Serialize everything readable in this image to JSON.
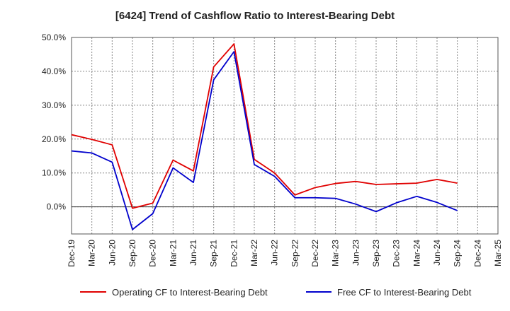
{
  "title": "[6424]  Trend of Cashflow Ratio to Interest-Bearing Debt",
  "chart_data": {
    "type": "line",
    "title": "[6424]  Trend of Cashflow Ratio to Interest-Bearing Debt",
    "xlabel": "",
    "ylabel": "",
    "x_tick_labels": [
      "Dec-19",
      "Mar-20",
      "Jun-20",
      "Sep-20",
      "Dec-20",
      "Mar-21",
      "Jun-21",
      "Sep-21",
      "Dec-21",
      "Mar-22",
      "Jun-22",
      "Sep-22",
      "Dec-22",
      "Mar-23",
      "Jun-23",
      "Sep-23",
      "Dec-23",
      "Mar-24",
      "Jun-24",
      "Sep-24",
      "Dec-24",
      "Mar-25"
    ],
    "y_tick_labels": [
      "50.0%",
      "40.0%",
      "30.0%",
      "20.0%",
      "10.0%",
      "0.0%"
    ],
    "y_ticks": [
      50,
      40,
      30,
      20,
      10,
      0
    ],
    "ylim": [
      -8,
      50
    ],
    "grid": true,
    "legend_position": "bottom",
    "series": [
      {
        "name": "Operating CF to Interest-Bearing Debt",
        "color": "#e00000",
        "x": [
          "Dec-19",
          "Mar-20",
          "Jun-20",
          "Sep-20",
          "Dec-20",
          "Mar-21",
          "Jun-21",
          "Sep-21",
          "Dec-21",
          "Mar-22",
          "Jun-22",
          "Sep-22",
          "Dec-22",
          "Mar-23",
          "Jun-23",
          "Sep-23",
          "Dec-23",
          "Mar-24",
          "Jun-24",
          "Sep-24"
        ],
        "values": [
          21.3,
          19.9,
          18.3,
          -0.4,
          1.1,
          13.8,
          10.6,
          41.3,
          48.1,
          14.0,
          10.0,
          3.5,
          5.7,
          6.9,
          7.5,
          6.6,
          6.8,
          7.0,
          8.1,
          7.0
        ]
      },
      {
        "name": "Free CF to Interest-Bearing Debt",
        "color": "#0000cc",
        "x": [
          "Dec-19",
          "Mar-20",
          "Jun-20",
          "Sep-20",
          "Dec-20",
          "Mar-21",
          "Jun-21",
          "Sep-21",
          "Dec-21",
          "Mar-22",
          "Jun-22",
          "Sep-22",
          "Dec-22",
          "Mar-23",
          "Jun-23",
          "Sep-23",
          "Dec-23",
          "Mar-24",
          "Jun-24",
          "Sep-24"
        ],
        "values": [
          16.5,
          15.9,
          13.2,
          -6.7,
          -2.0,
          11.5,
          7.2,
          37.5,
          45.8,
          12.5,
          9.0,
          2.7,
          2.7,
          2.5,
          0.8,
          -1.4,
          1.2,
          3.1,
          1.3,
          -1.1
        ]
      }
    ]
  }
}
